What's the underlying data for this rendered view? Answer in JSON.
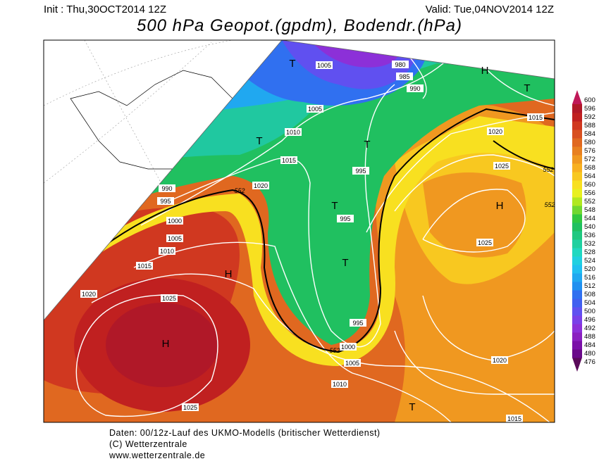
{
  "header": {
    "init": "Init : Thu,30OCT2014 12Z",
    "valid": "Valid: Tue,04NOV2014 12Z",
    "title": "500 hPa Geopot.(gpdm), Bodendr.(hPa)"
  },
  "map": {
    "pressure_centers": [
      "T",
      "H",
      "T",
      "T",
      "T",
      "T",
      "H",
      "T",
      "H",
      "H",
      "T"
    ],
    "isobar_labels": [
      1005,
      980,
      985,
      990,
      1005,
      1010,
      1015,
      1020,
      1015,
      1025,
      1020,
      995,
      990,
      995,
      1000,
      1005,
      1010,
      995,
      1025,
      1015,
      1020,
      1025,
      995,
      1000,
      1005,
      1020,
      1010,
      1025,
      1015
    ],
    "height_labels": [
      552,
      552,
      552,
      552
    ]
  },
  "colorbar": {
    "levels": [
      476,
      480,
      484,
      488,
      492,
      496,
      500,
      504,
      508,
      512,
      516,
      520,
      524,
      528,
      532,
      536,
      540,
      544,
      548,
      552,
      556,
      560,
      564,
      568,
      572,
      576,
      580,
      584,
      588,
      592,
      596,
      600
    ],
    "colors": [
      "#5a0a5a",
      "#6a0a8a",
      "#7a10a8",
      "#8a20c0",
      "#8c30d8",
      "#7a40e8",
      "#6050f0",
      "#4060f0",
      "#3070f0",
      "#2090f0",
      "#20a8f0",
      "#20c0f0",
      "#20d0e0",
      "#20d8c0",
      "#20d0a0",
      "#20c880",
      "#20c060",
      "#30c840",
      "#70d830",
      "#b0e820",
      "#e8f020",
      "#f8e020",
      "#f8c820",
      "#f8b020",
      "#f09820",
      "#e88020",
      "#e06820",
      "#d85020",
      "#d03820",
      "#c02020",
      "#b01828",
      "#c01858"
    ]
  },
  "footer": {
    "lines": [
      "Daten: 00/12z-Lauf des UKMO-Modells (britischer Wetterdienst)",
      "(C) Wetterzentrale",
      "www.wetterzentrale.de"
    ]
  }
}
